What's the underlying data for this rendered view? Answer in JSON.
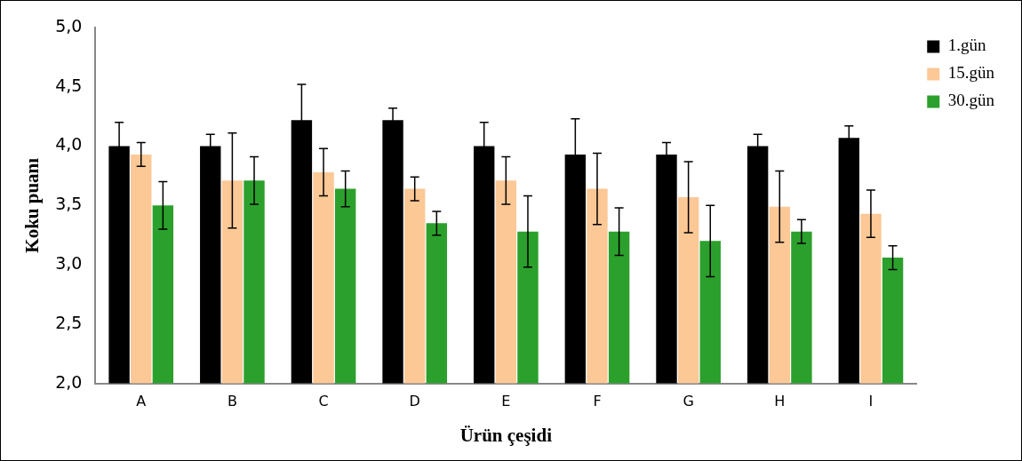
{
  "chart_data": {
    "type": "bar",
    "xlabel": "Ürün çeşidi",
    "ylabel": "Koku puanı",
    "categories": [
      "A",
      "B",
      "C",
      "D",
      "E",
      "F",
      "G",
      "H",
      "I"
    ],
    "series": [
      {
        "name": "1.gün",
        "color": "#000000",
        "values": [
          4.0,
          4.0,
          4.22,
          4.22,
          4.0,
          3.93,
          3.93,
          4.0,
          4.07
        ],
        "errors": [
          0.2,
          0.1,
          0.3,
          0.1,
          0.2,
          0.3,
          0.1,
          0.1,
          0.1
        ]
      },
      {
        "name": "15.gün",
        "color": "#fcc896",
        "values": [
          3.93,
          3.71,
          3.78,
          3.64,
          3.71,
          3.64,
          3.57,
          3.49,
          3.43
        ],
        "errors": [
          0.1,
          0.4,
          0.2,
          0.1,
          0.2,
          0.3,
          0.3,
          0.3,
          0.2
        ]
      },
      {
        "name": "30.gün",
        "color": "#2ca02c",
        "values": [
          3.5,
          3.71,
          3.64,
          3.35,
          3.28,
          3.28,
          3.2,
          3.28,
          3.06
        ],
        "errors": [
          0.2,
          0.2,
          0.15,
          0.1,
          0.3,
          0.2,
          0.3,
          0.1,
          0.1
        ]
      }
    ],
    "ylim": [
      2.0,
      5.0
    ],
    "yticks": [
      {
        "value": 2.0,
        "label": "2,0"
      },
      {
        "value": 2.5,
        "label": "2,5"
      },
      {
        "value": 3.0,
        "label": "3,0"
      },
      {
        "value": 3.5,
        "label": "3,5"
      },
      {
        "value": 4.0,
        "label": "4,0"
      },
      {
        "value": 4.5,
        "label": "4,5"
      },
      {
        "value": 5.0,
        "label": "5,0"
      }
    ],
    "grid": false,
    "legend": "top right"
  }
}
